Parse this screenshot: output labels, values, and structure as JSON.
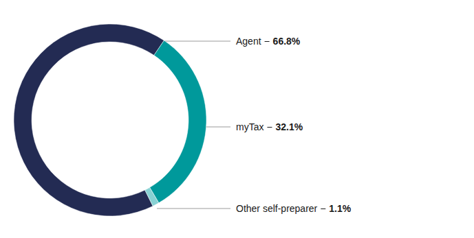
{
  "chart_data": {
    "type": "donut",
    "categories": [
      "Agent",
      "myTax",
      "Other self-preparer"
    ],
    "values": [
      66.8,
      32.1,
      1.1
    ],
    "value_labels": [
      "66.8%",
      "32.1%",
      "1.1%"
    ],
    "colors": [
      "#232b53",
      "#00999b",
      "#88d1d3"
    ],
    "data_labels": true
  }
}
